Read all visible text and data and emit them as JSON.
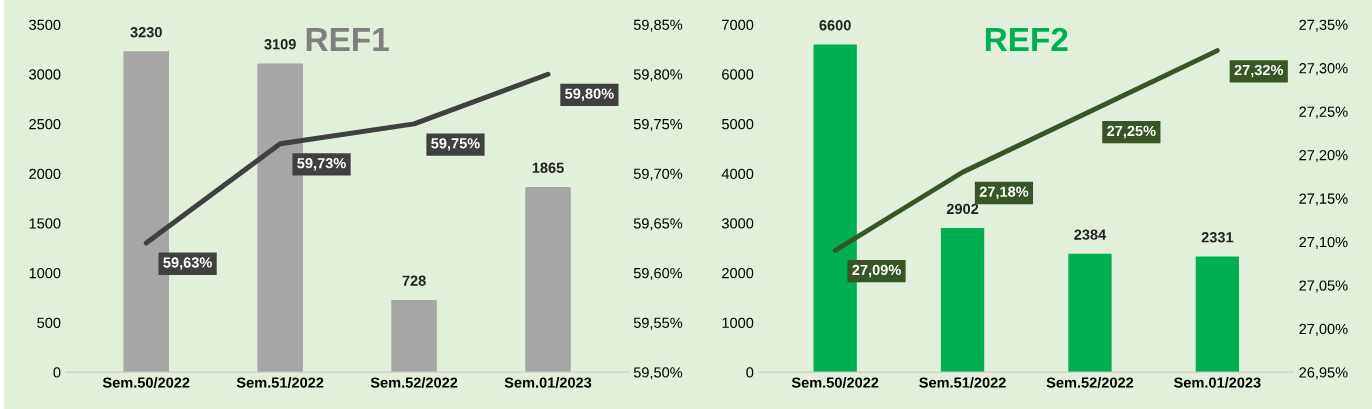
{
  "chart_data": [
    {
      "type": "bar",
      "title": "REF1",
      "categories": [
        "Sem.50/2022",
        "Sem.51/2022",
        "Sem.52/2022",
        "Sem.01/2023"
      ],
      "series": [
        {
          "color": "#a6a6a6",
          "values": [
            3230,
            3109,
            728,
            1865
          ],
          "value_labels": [
            "3230",
            "3109",
            "728",
            "1865"
          ]
        },
        {
          "type": "line",
          "axis": "y2",
          "color": "#404040",
          "values": [
            59.63,
            59.73,
            59.75,
            59.8
          ],
          "value_labels": [
            "59,63%",
            "59,73%",
            "59,75%",
            "59,80%"
          ]
        }
      ],
      "ylim": [
        0,
        3500
      ],
      "yticks": [
        0,
        500,
        1000,
        1500,
        2000,
        2500,
        3000,
        3500
      ],
      "y2lim": [
        59.5,
        59.85
      ],
      "y2ticks": [
        {
          "value": 59.5,
          "label": "59,50%"
        },
        {
          "value": 59.55,
          "label": "59,55%"
        },
        {
          "value": 59.6,
          "label": "59,60%"
        },
        {
          "value": 59.65,
          "label": "59,65%"
        },
        {
          "value": 59.7,
          "label": "59,70%"
        },
        {
          "value": 59.75,
          "label": "59,75%"
        },
        {
          "value": 59.8,
          "label": "59,80%"
        },
        {
          "value": 59.85,
          "label": "59,85%"
        }
      ],
      "grid": false
    },
    {
      "type": "bar",
      "title": "REF2",
      "categories": [
        "Sem.50/2022",
        "Sem.51/2022",
        "Sem.52/2022",
        "Sem.01/2023"
      ],
      "series": [
        {
          "color": "#00b050",
          "values": [
            6600,
            2902,
            2384,
            2331
          ],
          "value_labels": [
            "6600",
            "2902",
            "2384",
            "2331"
          ]
        },
        {
          "type": "line",
          "axis": "y2",
          "color": "#375623",
          "values": [
            27.09,
            27.18,
            27.25,
            27.32
          ],
          "value_labels": [
            "27,09%",
            "27,18%",
            "27,25%",
            "27,32%"
          ]
        }
      ],
      "ylim": [
        0,
        7000
      ],
      "yticks": [
        0,
        1000,
        2000,
        3000,
        4000,
        5000,
        6000,
        7000
      ],
      "y2lim": [
        26.95,
        27.35
      ],
      "y2ticks": [
        {
          "value": 26.95,
          "label": "26,95%"
        },
        {
          "value": 27.0,
          "label": "27,00%"
        },
        {
          "value": 27.05,
          "label": "27,05%"
        },
        {
          "value": 27.1,
          "label": "27,10%"
        },
        {
          "value": 27.15,
          "label": "27,15%"
        },
        {
          "value": 27.2,
          "label": "27,20%"
        },
        {
          "value": 27.25,
          "label": "27,25%"
        },
        {
          "value": 27.3,
          "label": "27,30%"
        },
        {
          "value": 27.35,
          "label": "27,35%"
        }
      ],
      "grid": false
    }
  ]
}
